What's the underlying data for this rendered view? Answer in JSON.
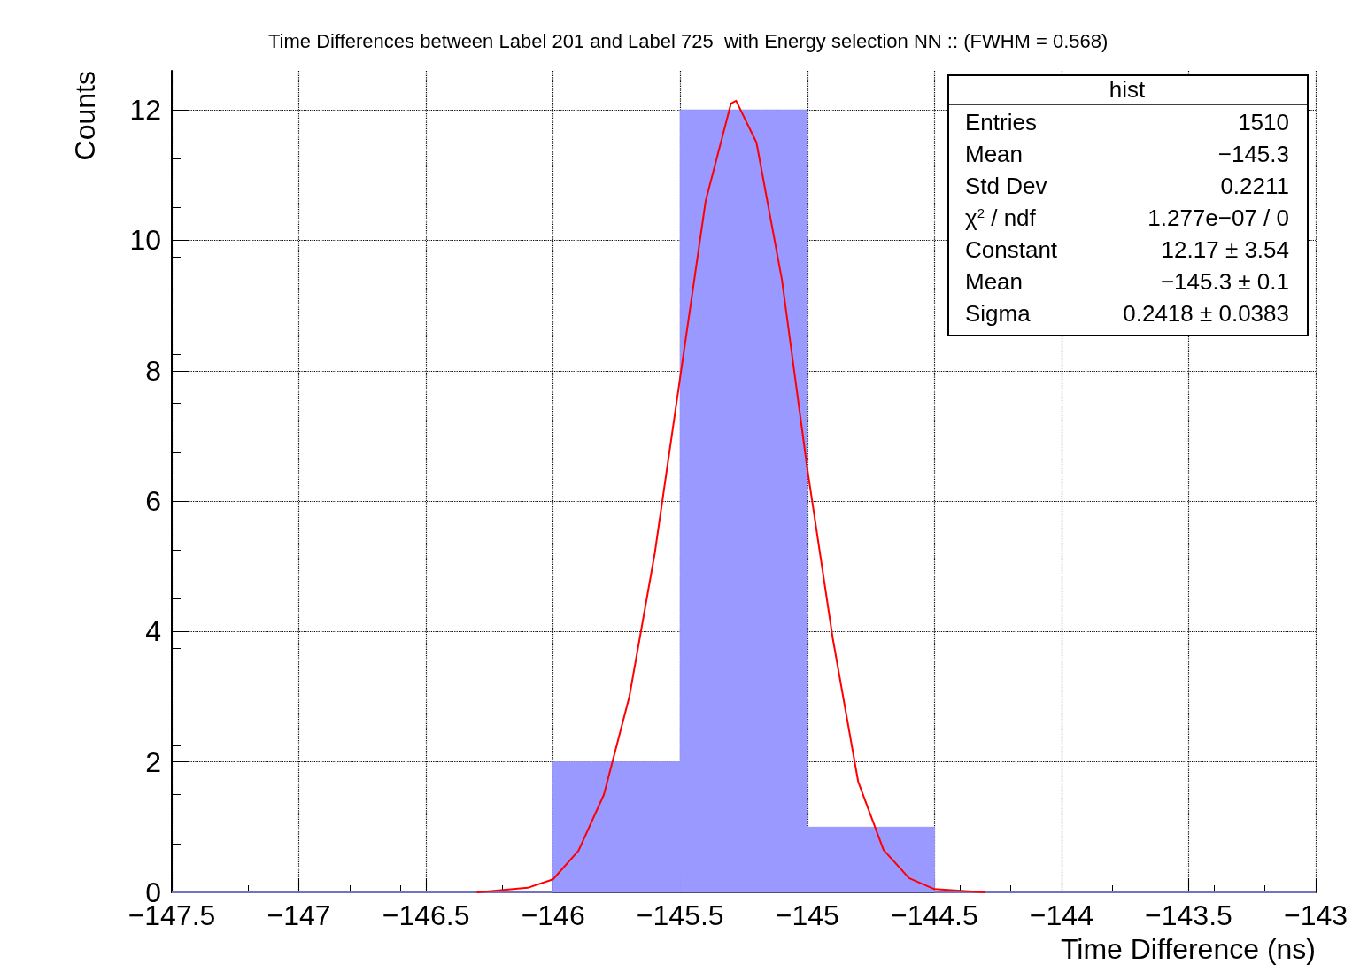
{
  "chart_data": {
    "type": "histogram",
    "title": "Time Differences between Label 201 and Label 725  with Energy selection NN :: (FWHM = 0.568)",
    "xlabel": "Time Difference (ns)",
    "ylabel": "Counts",
    "series": [
      {
        "color": "#9999ff",
        "bins": [
          -147.5,
          -147,
          -146.5,
          -146,
          -145.5,
          -145,
          -144.5,
          -144,
          -143.5,
          -143
        ],
        "values": [
          0,
          0,
          0,
          2,
          12,
          1,
          0,
          0,
          0
        ]
      },
      {
        "type": "line",
        "color": "#ff0000",
        "x": [
          -146.3,
          -146.1,
          -146.0,
          -145.9,
          -145.8,
          -145.7,
          -145.6,
          -145.5,
          -145.4,
          -145.3,
          -145.28,
          -145.2,
          -145.1,
          -145.0,
          -144.9,
          -144.8,
          -144.7,
          -144.6,
          -144.5,
          -144.3
        ],
        "values": [
          0.0,
          0.07,
          0.2,
          0.64,
          1.5,
          3.0,
          5.2,
          7.9,
          10.6,
          12.1,
          12.14,
          11.5,
          9.4,
          6.5,
          3.9,
          1.7,
          0.65,
          0.22,
          0.05,
          0.0
        ]
      }
    ],
    "xlim": [
      -147.5,
      -143
    ],
    "xticks": [
      -147.5,
      -147,
      -146.5,
      -146,
      -145.5,
      -145,
      -144.5,
      -144,
      -143.5,
      -143
    ],
    "ylim": [
      0,
      12.6
    ],
    "yticks": [
      0,
      2,
      4,
      6,
      8,
      10,
      12
    ],
    "grid": true,
    "line_style": "solid",
    "marker": "none",
    "annotations": [
      "hist",
      "Entries",
      "1510",
      "Mean",
      "−145.3",
      "Std Dev",
      "0.2211",
      "χ$^{2}$ / ndf",
      "1.277e−07 / 0",
      "Constant",
      "12.17 ± 3.54",
      "Mean",
      "−145.3 ± 0.1",
      "Sigma",
      "0.2418 ± 0.0383"
    ]
  }
}
